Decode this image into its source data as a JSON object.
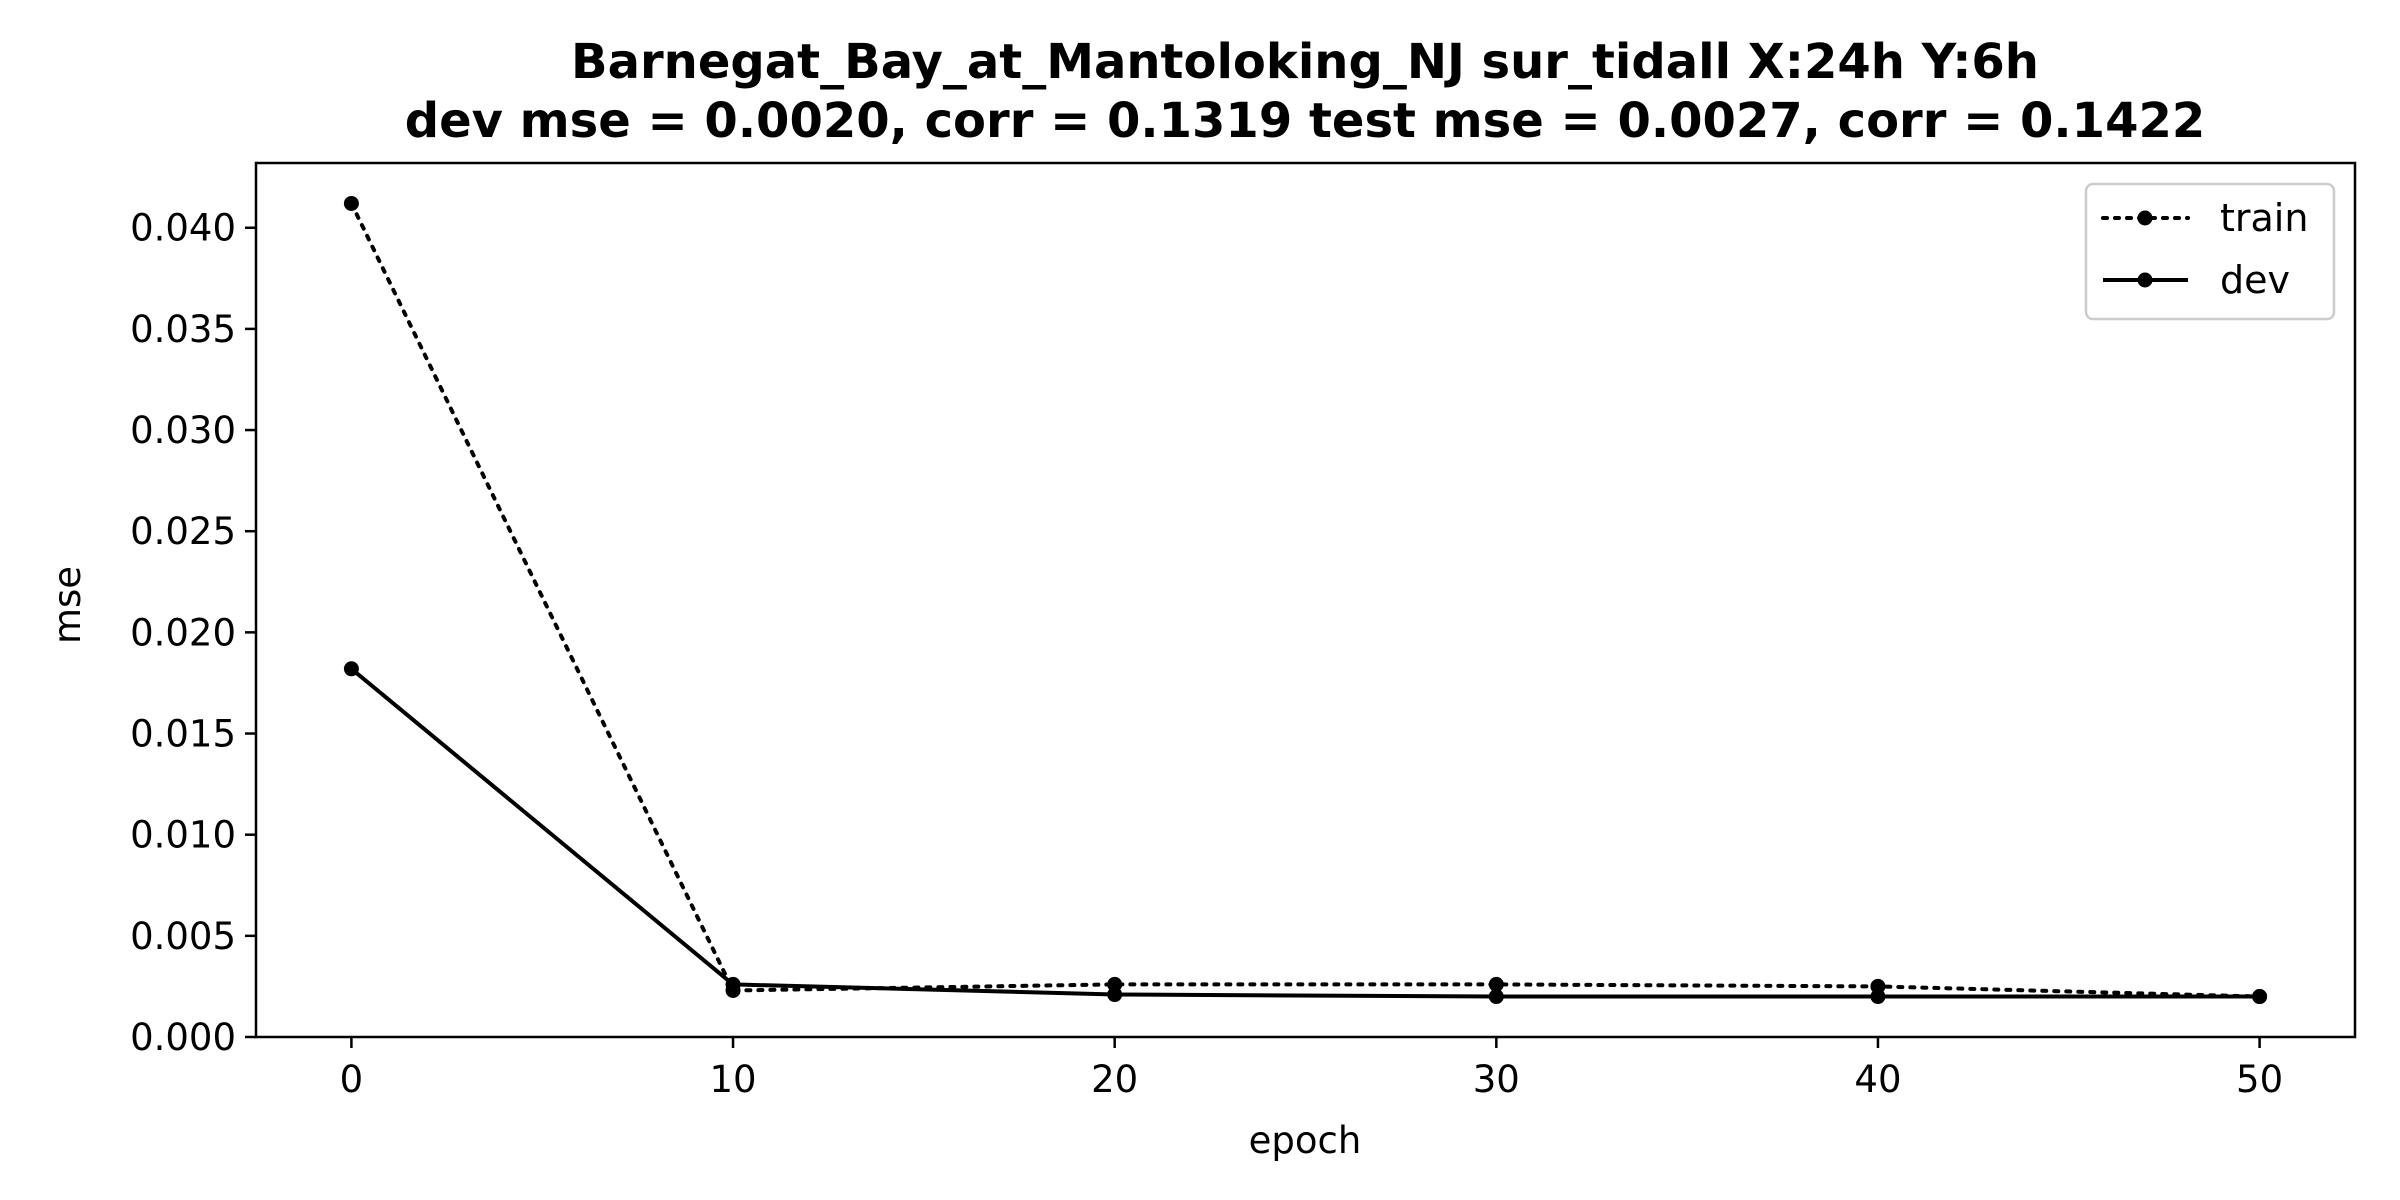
{
  "chart_data": {
    "type": "line",
    "title": "Barnegat_Bay_at_Mantoloking_NJ   sur_tidall   X:24h   Y:6h",
    "subtitle": "dev mse = 0.0020, corr = 0.1319   test mse = 0.0027, corr = 0.1422",
    "xlabel": "epoch",
    "ylabel": "mse",
    "xlim": [
      -2.5,
      52.5
    ],
    "ylim": [
      0.0,
      0.0432
    ],
    "xticks": [
      0,
      10,
      20,
      30,
      40,
      50
    ],
    "xtick_labels": [
      "0",
      "10",
      "20",
      "30",
      "40",
      "50"
    ],
    "yticks": [
      0.0,
      0.005,
      0.01,
      0.015,
      0.02,
      0.025,
      0.03,
      0.035,
      0.04
    ],
    "ytick_labels": [
      "0.000",
      "0.005",
      "0.010",
      "0.015",
      "0.020",
      "0.025",
      "0.030",
      "0.035",
      "0.040"
    ],
    "grid": false,
    "legend_position": "top-right",
    "x": [
      0,
      10,
      20,
      30,
      40,
      50
    ],
    "series": [
      {
        "name": "train",
        "values": [
          0.0412,
          0.0023,
          0.0026,
          0.0026,
          0.0025,
          0.002
        ],
        "color": "#000000",
        "line_style": "dotted",
        "marker": "circle"
      },
      {
        "name": "dev",
        "values": [
          0.0182,
          0.0026,
          0.0021,
          0.002,
          0.002,
          0.002
        ],
        "color": "#000000",
        "line_style": "solid",
        "marker": "circle"
      }
    ]
  }
}
